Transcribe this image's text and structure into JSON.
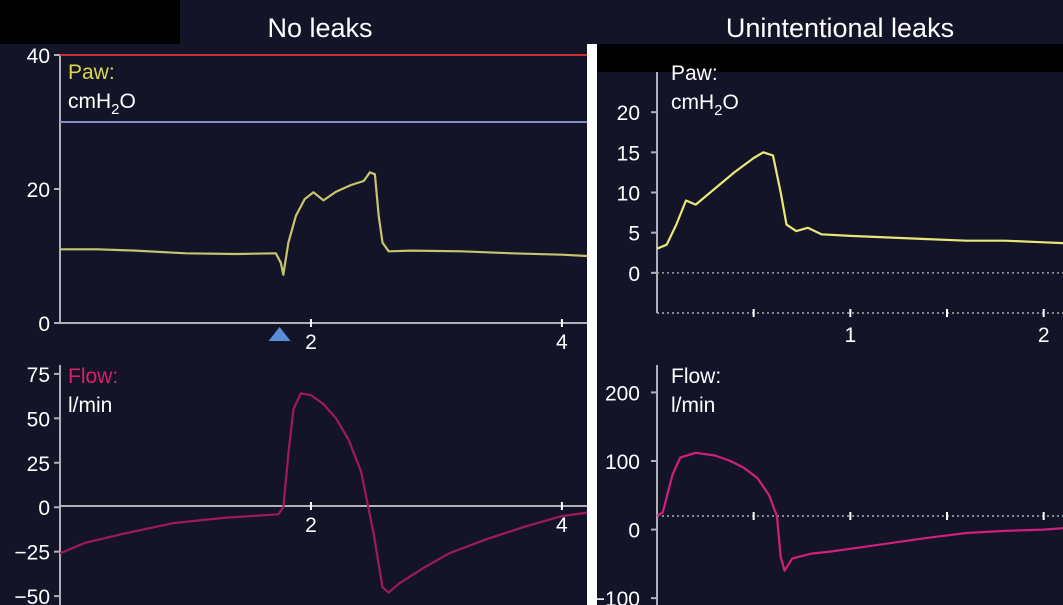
{
  "headings": {
    "left": "No leaks",
    "right": "Unintentional leaks"
  },
  "colors": {
    "background": "#141428",
    "header_band": "#000000",
    "paw_trace_left": "#c7c46e",
    "paw_trace_right": "#e8e87a",
    "flow_trace_left": "#a01a5a",
    "flow_trace_right": "#d0207a",
    "paw_label_left": "#d8d84a",
    "flow_label_left": "#d8206a",
    "alarm_upper": "#c83030",
    "alarm_lower": "#8090c8"
  },
  "chart_data": [
    {
      "id": "paw-no-leaks",
      "type": "line",
      "label": "Paw:",
      "unit": "cmH2O",
      "y_ticks": [
        "40",
        "20",
        "0"
      ],
      "x_ticks": [
        "2",
        "4"
      ],
      "ylim": [
        0,
        40
      ],
      "xlim": [
        0,
        4.2
      ],
      "reference_lines": [
        {
          "name": "upper pressure limit",
          "y": 40
        },
        {
          "name": "lower pressure limit",
          "y": 30
        }
      ],
      "marker": {
        "symbol": "triangle",
        "x": 1.75
      },
      "series": [
        {
          "points": [
            [
              0,
              11
            ],
            [
              0.3,
              11
            ],
            [
              0.6,
              10.8
            ],
            [
              1.0,
              10.4
            ],
            [
              1.4,
              10.3
            ],
            [
              1.72,
              10.4
            ],
            [
              1.76,
              9
            ],
            [
              1.78,
              7.2
            ],
            [
              1.82,
              12
            ],
            [
              1.88,
              16
            ],
            [
              1.95,
              18.5
            ],
            [
              2.02,
              19.5
            ],
            [
              2.1,
              18.3
            ],
            [
              2.2,
              19.6
            ],
            [
              2.32,
              20.6
            ],
            [
              2.42,
              21.2
            ],
            [
              2.47,
              22.5
            ],
            [
              2.51,
              22.2
            ],
            [
              2.54,
              16
            ],
            [
              2.57,
              12
            ],
            [
              2.62,
              10.7
            ],
            [
              2.8,
              10.8
            ],
            [
              3.2,
              10.7
            ],
            [
              3.6,
              10.4
            ],
            [
              4.0,
              10.2
            ],
            [
              4.2,
              10
            ]
          ]
        }
      ]
    },
    {
      "id": "flow-no-leaks",
      "type": "line",
      "label": "Flow:",
      "unit": "l/min",
      "y_ticks": [
        "75",
        "50",
        "25",
        "0",
        "−25",
        "−50"
      ],
      "x_ticks": [
        "2",
        "4"
      ],
      "ylim": [
        -55,
        80
      ],
      "xlim": [
        0,
        4.2
      ],
      "series": [
        {
          "points": [
            [
              0,
              -26
            ],
            [
              0.2,
              -20
            ],
            [
              0.5,
              -15
            ],
            [
              0.9,
              -9
            ],
            [
              1.3,
              -6
            ],
            [
              1.74,
              -4
            ],
            [
              1.78,
              0
            ],
            [
              1.82,
              30
            ],
            [
              1.86,
              55
            ],
            [
              1.92,
              64
            ],
            [
              2.0,
              63
            ],
            [
              2.1,
              58
            ],
            [
              2.2,
              50
            ],
            [
              2.3,
              38
            ],
            [
              2.4,
              20
            ],
            [
              2.5,
              -15
            ],
            [
              2.57,
              -45
            ],
            [
              2.62,
              -48
            ],
            [
              2.7,
              -43
            ],
            [
              2.9,
              -34
            ],
            [
              3.1,
              -26
            ],
            [
              3.4,
              -18
            ],
            [
              3.7,
              -11
            ],
            [
              4.0,
              -5
            ],
            [
              4.2,
              -3
            ]
          ]
        }
      ]
    },
    {
      "id": "paw-unintentional-leaks",
      "type": "line",
      "label": "Paw:",
      "unit": "cmH2O",
      "y_ticks": [
        "20",
        "15",
        "10",
        "5",
        "0"
      ],
      "x_ticks": [
        "1",
        "2"
      ],
      "ylim": [
        -5,
        25
      ],
      "xlim": [
        0,
        2.1
      ],
      "series": [
        {
          "points": [
            [
              0,
              3
            ],
            [
              0.05,
              3.5
            ],
            [
              0.1,
              6
            ],
            [
              0.15,
              9
            ],
            [
              0.2,
              8.5
            ],
            [
              0.3,
              10.5
            ],
            [
              0.4,
              12.5
            ],
            [
              0.5,
              14.3
            ],
            [
              0.55,
              15
            ],
            [
              0.6,
              14.6
            ],
            [
              0.64,
              10
            ],
            [
              0.67,
              6
            ],
            [
              0.72,
              5.2
            ],
            [
              0.78,
              5.6
            ],
            [
              0.85,
              4.8
            ],
            [
              1.0,
              4.6
            ],
            [
              1.2,
              4.4
            ],
            [
              1.4,
              4.2
            ],
            [
              1.6,
              4.0
            ],
            [
              1.8,
              4.0
            ],
            [
              2.0,
              3.8
            ],
            [
              2.1,
              3.7
            ]
          ]
        }
      ]
    },
    {
      "id": "flow-unintentional-leaks",
      "type": "line",
      "label": "Flow:",
      "unit": "l/min",
      "y_ticks": [
        "200",
        "100",
        "0",
        "−100"
      ],
      "x_ticks": [],
      "ylim": [
        -110,
        240
      ],
      "xlim": [
        0,
        2.1
      ],
      "series": [
        {
          "points": [
            [
              0,
              20
            ],
            [
              0.03,
              25
            ],
            [
              0.08,
              80
            ],
            [
              0.12,
              105
            ],
            [
              0.2,
              112
            ],
            [
              0.3,
              108
            ],
            [
              0.38,
              100
            ],
            [
              0.45,
              90
            ],
            [
              0.52,
              75
            ],
            [
              0.58,
              50
            ],
            [
              0.62,
              20
            ],
            [
              0.64,
              -40
            ],
            [
              0.66,
              -60
            ],
            [
              0.7,
              -42
            ],
            [
              0.8,
              -35
            ],
            [
              0.9,
              -32
            ],
            [
              1.0,
              -28
            ],
            [
              1.2,
              -20
            ],
            [
              1.4,
              -12
            ],
            [
              1.6,
              -5
            ],
            [
              1.8,
              -2
            ],
            [
              2.0,
              0
            ],
            [
              2.1,
              2
            ]
          ]
        }
      ]
    }
  ]
}
